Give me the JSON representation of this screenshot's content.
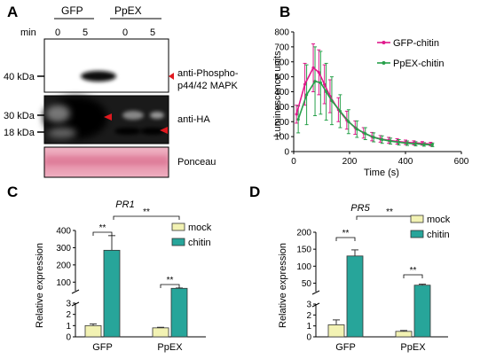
{
  "panels": {
    "A": {
      "letter": "A",
      "conditions": [
        "GFP",
        "PpEX"
      ],
      "time_label": "min",
      "time_points": [
        "0",
        "5",
        "0",
        "5"
      ],
      "markers": [
        "40 kDa",
        "30 kDa",
        "18 kDa"
      ],
      "blot_labels": [
        "anti-Phospho-",
        "p44/42 MAPK",
        "anti-HA",
        "Ponceau"
      ],
      "colors": {
        "arrow": "#e0191f",
        "ponceau": "#e69ab0"
      }
    },
    "B": {
      "letter": "B"
    },
    "C": {
      "letter": "C"
    },
    "D": {
      "letter": "D"
    }
  },
  "chart_data": [
    {
      "panel": "B",
      "type": "line",
      "xlabel": "Time (s)",
      "ylabel": "Luminescence units",
      "xlim": [
        0,
        600
      ],
      "ylim": [
        0,
        800
      ],
      "xticks": [
        0,
        200,
        400,
        600
      ],
      "yticks": [
        0,
        100,
        200,
        300,
        400,
        500,
        600,
        700,
        800
      ],
      "legend_position": "top-right",
      "x": [
        10,
        40,
        70,
        90,
        110,
        130,
        160,
        190,
        220,
        250,
        280,
        310,
        340,
        370,
        400,
        430,
        460,
        490
      ],
      "series": [
        {
          "name": "GFP-chitin",
          "color": "#e0198c",
          "values": [
            250,
            450,
            560,
            530,
            450,
            370,
            280,
            210,
            160,
            125,
            100,
            85,
            75,
            68,
            62,
            58,
            55,
            50
          ],
          "errors": [
            60,
            140,
            160,
            150,
            130,
            110,
            80,
            60,
            45,
            35,
            28,
            22,
            20,
            18,
            15,
            14,
            12,
            12
          ]
        },
        {
          "name": "PpEX-chitin",
          "color": "#27a04a",
          "values": [
            215,
            380,
            470,
            460,
            400,
            340,
            270,
            200,
            150,
            120,
            95,
            80,
            70,
            62,
            56,
            52,
            48,
            45
          ],
          "errors": [
            90,
            200,
            230,
            210,
            190,
            160,
            110,
            80,
            55,
            40,
            30,
            25,
            20,
            18,
            15,
            14,
            12,
            12
          ]
        }
      ]
    },
    {
      "panel": "C",
      "type": "bar",
      "title": "PR1",
      "xlabel": "",
      "ylabel": "Relative expression",
      "categories": [
        "GFP",
        "PpEX"
      ],
      "axis_break": {
        "lower": [
          0,
          3
        ],
        "upper": [
          50,
          400
        ]
      },
      "yticks_lower": [
        0,
        1,
        2,
        3
      ],
      "yticks_upper": [
        100,
        200,
        300,
        400
      ],
      "legend_position": "top-right",
      "series": [
        {
          "name": "mock",
          "color": "#f2f2b3",
          "values": [
            1.0,
            0.8
          ],
          "errors": [
            0.15,
            0.05
          ]
        },
        {
          "name": "chitin",
          "color": "#27a59a",
          "values": [
            285,
            64
          ],
          "errors": [
            85,
            2
          ]
        }
      ],
      "significance": [
        "**",
        "**",
        "**"
      ]
    },
    {
      "panel": "D",
      "type": "bar",
      "title": "PR5",
      "xlabel": "",
      "ylabel": "Relative expression",
      "categories": [
        "GFP",
        "PpEX"
      ],
      "axis_break": {
        "lower": [
          0,
          3
        ],
        "upper": [
          25,
          200
        ]
      },
      "yticks_lower": [
        0,
        1,
        2,
        3
      ],
      "yticks_upper": [
        50,
        100,
        150,
        200
      ],
      "legend_position": "top-right",
      "series": [
        {
          "name": "mock",
          "color": "#f2f2b3",
          "values": [
            1.1,
            0.5
          ],
          "errors": [
            0.45,
            0.08
          ]
        },
        {
          "name": "chitin",
          "color": "#27a59a",
          "values": [
            130,
            44
          ],
          "errors": [
            18,
            3
          ]
        }
      ],
      "significance": [
        "**",
        "**",
        "**"
      ]
    }
  ]
}
